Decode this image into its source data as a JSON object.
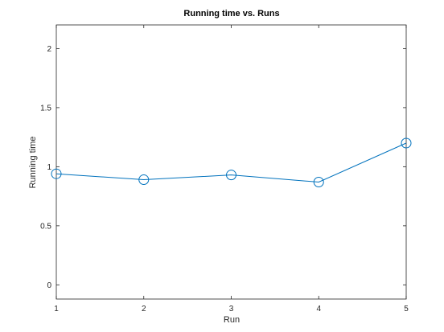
{
  "chart_data": {
    "type": "line",
    "title": "Running time vs. Runs",
    "xlabel": "Run",
    "ylabel": "Running time",
    "x": [
      1,
      2,
      3,
      4,
      5
    ],
    "series": [
      {
        "values": [
          0.94,
          0.89,
          0.93,
          0.87,
          1.2
        ]
      }
    ],
    "xlim": [
      1,
      5
    ],
    "ylim": [
      -0.12,
      2.2
    ],
    "xticks": [
      "1",
      "2",
      "3",
      "4",
      "5"
    ],
    "yticks": [
      "0",
      "0.5",
      "1",
      "1.5",
      "2"
    ],
    "grid": false,
    "marker": "circle",
    "line_color": "#0072BD",
    "axis_color": "#262626"
  }
}
